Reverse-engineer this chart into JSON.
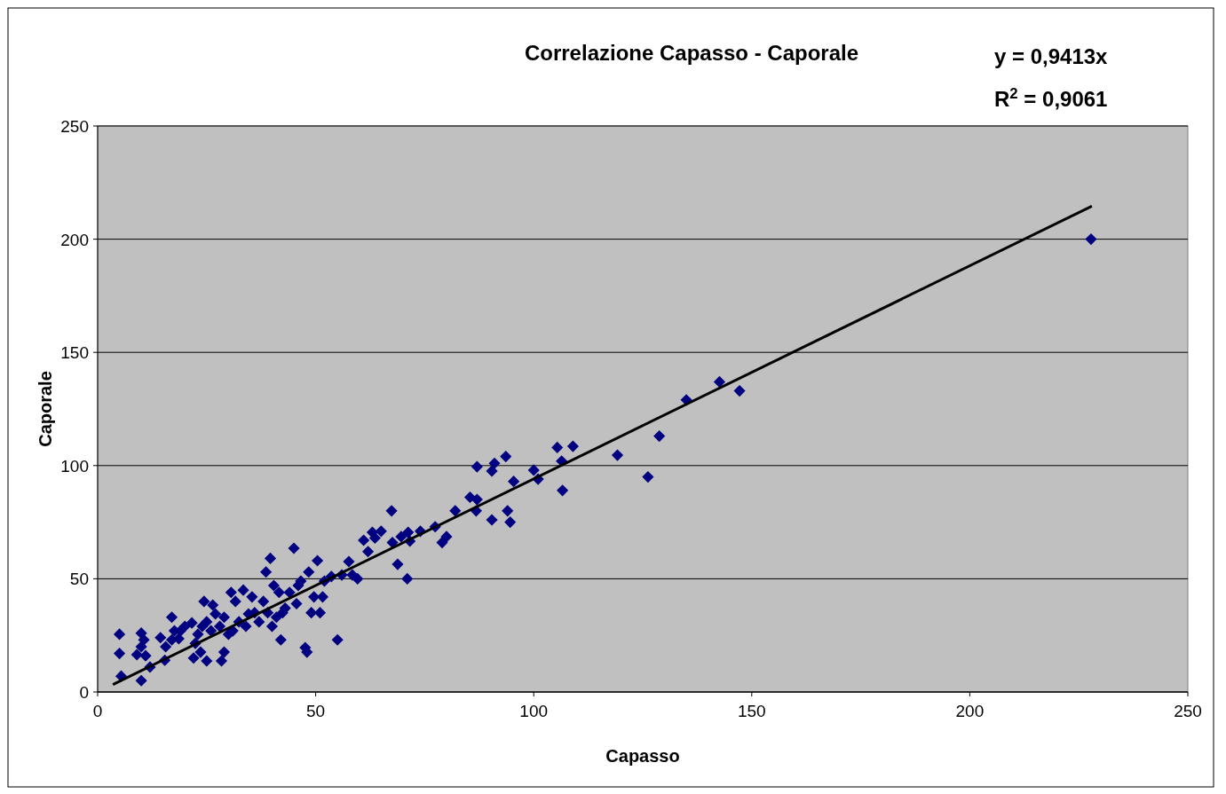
{
  "chart_data": {
    "type": "scatter",
    "title": "Correlazione Capasso - Caporale",
    "xlabel": "Capasso",
    "ylabel": "Caporale",
    "xlim": [
      0,
      250
    ],
    "ylim": [
      0,
      250
    ],
    "xticks": [
      0,
      50,
      100,
      150,
      200,
      250
    ],
    "yticks": [
      0,
      50,
      100,
      150,
      200,
      250
    ],
    "grid": "y",
    "annotations": [
      "y = 0,9413x",
      "R$^{2}$ = 0,9061"
    ],
    "series": [
      {
        "marker": "diamond",
        "color": "#000080",
        "x": [
          5,
          5,
          5.4,
          10,
          10,
          10.6,
          10,
          9,
          11,
          12,
          14.4,
          15.4,
          15.6,
          17,
          17,
          17.6,
          19,
          18.6,
          20,
          21.6,
          22,
          22.4,
          23,
          23.6,
          24.4,
          24,
          25,
          25,
          26,
          26.4,
          27,
          28,
          28.4,
          29,
          29,
          30,
          30.6,
          31,
          31.6,
          32.4,
          33.4,
          34,
          34.6,
          35.4,
          36,
          37,
          38,
          38.6,
          39,
          39.6,
          40,
          40.4,
          41,
          41.6,
          42,
          42.4,
          43,
          44,
          45,
          45.6,
          46,
          46.6,
          47.6,
          48,
          48.4,
          49,
          49.6,
          50.4,
          51,
          51.6,
          52,
          53.6,
          55,
          56,
          57.6,
          58.4,
          59.6,
          61,
          62,
          63,
          63.6,
          65,
          67.4,
          67.6,
          68.8,
          69.6,
          71,
          71.2,
          71.6,
          74,
          77.4,
          79,
          80,
          82,
          85.4,
          87,
          87,
          86.8,
          90.4,
          91,
          90.4,
          93.6,
          94,
          94.6,
          95.4,
          100,
          101,
          105.4,
          106.4,
          106.6,
          109,
          119.2,
          126.2,
          128.8,
          135,
          142.6,
          147.2,
          227.8
        ],
        "values": [
          25.5,
          17,
          7,
          5,
          26,
          23,
          20,
          16.5,
          16,
          11,
          24,
          14,
          20,
          33,
          23,
          27,
          27,
          23.5,
          29,
          30.5,
          15,
          21.5,
          25.5,
          17.6,
          40,
          29,
          31,
          13.7,
          27,
          38.4,
          34.5,
          29,
          13.7,
          17.6,
          33,
          25.5,
          44,
          27,
          40,
          31,
          45,
          29,
          34.5,
          42,
          35,
          31,
          40,
          53,
          35,
          59,
          29,
          47,
          33,
          44,
          23,
          35,
          37,
          44,
          63.5,
          39,
          47,
          49,
          19.6,
          17.6,
          53,
          35,
          42,
          58,
          35,
          42,
          49,
          51,
          23,
          51.7,
          57.6,
          51.7,
          50,
          67,
          62,
          70.5,
          68,
          71,
          80,
          66,
          56.4,
          68.6,
          50,
          70.5,
          66.6,
          71,
          73,
          66,
          68.6,
          80,
          86,
          99.5,
          85,
          80,
          97.6,
          101,
          76,
          104,
          80,
          75,
          93,
          98,
          94,
          108,
          102,
          89,
          108.5,
          104.6,
          95,
          113,
          129,
          137,
          133,
          200
        ]
      },
      {
        "type": "line",
        "color": "#000000",
        "x": [
          3.5,
          228
        ],
        "values": [
          3.3,
          214.6
        ]
      }
    ]
  }
}
